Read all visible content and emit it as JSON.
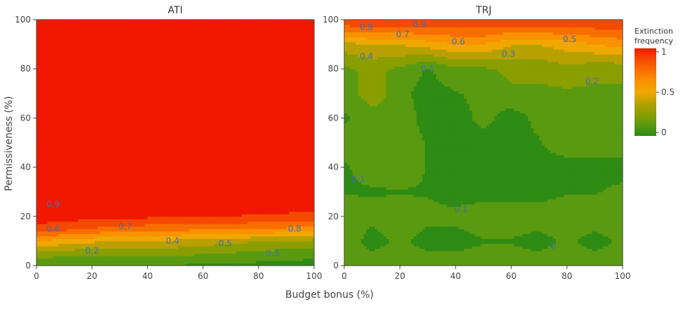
{
  "chart_data": {
    "type": "heatmap",
    "xlabel": "Budget bonus (%)",
    "ylabel": "Permissiveness (%)",
    "xlim": [
      0,
      100
    ],
    "ylim": [
      0,
      100
    ],
    "xticks": [
      "0",
      "20",
      "40",
      "60",
      "80",
      "100"
    ],
    "yticks": [
      "0",
      "20",
      "40",
      "60",
      "80",
      "100"
    ],
    "colorbar": {
      "title_line1": "Extinction",
      "title_line2": "frequency",
      "ticks": [
        "0",
        "0.5",
        "1"
      ],
      "tick_values": [
        0,
        0.5,
        1
      ],
      "colors": [
        "#2e8b14",
        "#5a9a10",
        "#8a9e00",
        "#b8a000",
        "#f0a800",
        "#fb9100",
        "#f86f00",
        "#f54a00",
        "#f21800"
      ]
    },
    "panels": [
      {
        "title": "ATI",
        "x": [
          0,
          25,
          50,
          75,
          100
        ],
        "y": [
          0,
          5,
          10,
          15,
          20,
          25,
          50,
          100
        ],
        "z": [
          [
            0.1,
            0.12,
            0.1,
            0.08,
            0.06
          ],
          [
            0.28,
            0.25,
            0.25,
            0.2,
            0.15
          ],
          [
            0.55,
            0.45,
            0.42,
            0.35,
            0.3
          ],
          [
            0.85,
            0.75,
            0.7,
            0.68,
            0.62
          ],
          [
            0.95,
            0.92,
            0.9,
            0.88,
            0.85
          ],
          [
            1.0,
            0.98,
            0.97,
            0.96,
            0.95
          ],
          [
            1.0,
            1.0,
            1.0,
            1.0,
            1.0
          ],
          [
            1.0,
            1.0,
            1.0,
            1.0,
            1.0
          ]
        ],
        "contour_labels": [
          {
            "text": "0.9",
            "x": 6,
            "y": 25
          },
          {
            "text": "0.6",
            "x": 6,
            "y": 15
          },
          {
            "text": "0.7",
            "x": 32,
            "y": 16
          },
          {
            "text": "0.8",
            "x": 93,
            "y": 15
          },
          {
            "text": "0.4",
            "x": 49,
            "y": 10
          },
          {
            "text": "0.5",
            "x": 68,
            "y": 9
          },
          {
            "text": "0.2",
            "x": 20,
            "y": 6
          },
          {
            "text": "0.3",
            "x": 85,
            "y": 5
          }
        ]
      },
      {
        "title": "TRJ",
        "x": [
          0,
          10,
          20,
          30,
          40,
          50,
          60,
          70,
          80,
          90,
          100
        ],
        "y": [
          0,
          10,
          20,
          30,
          40,
          50,
          60,
          70,
          80,
          90,
          100
        ],
        "z": [
          [
            0.2,
            0.2,
            0.2,
            0.2,
            0.2,
            0.2,
            0.2,
            0.2,
            0.2,
            0.2,
            0.2
          ],
          [
            0.2,
            0.05,
            0.15,
            0.05,
            0.05,
            0.1,
            0.1,
            0.05,
            0.15,
            0.05,
            0.15
          ],
          [
            0.2,
            0.15,
            0.2,
            0.15,
            0.15,
            0.2,
            0.2,
            0.2,
            0.2,
            0.2,
            0.2
          ],
          [
            0.1,
            0.1,
            0.1,
            0.1,
            0.05,
            0.05,
            0.05,
            0.05,
            0.1,
            0.1,
            0.15
          ],
          [
            0.1,
            0.15,
            0.2,
            0.1,
            0.1,
            0.05,
            0.05,
            0.05,
            0.05,
            0.05,
            0.05
          ],
          [
            0.15,
            0.2,
            0.2,
            0.1,
            0.05,
            0.05,
            0.05,
            0.1,
            0.2,
            0.2,
            0.2
          ],
          [
            0.1,
            0.15,
            0.2,
            0.05,
            0.05,
            0.15,
            0.05,
            0.15,
            0.2,
            0.2,
            0.2
          ],
          [
            0.15,
            0.3,
            0.15,
            0.05,
            0.1,
            0.15,
            0.2,
            0.2,
            0.2,
            0.2,
            0.2
          ],
          [
            0.2,
            0.25,
            0.2,
            0.1,
            0.2,
            0.2,
            0.25,
            0.25,
            0.3,
            0.25,
            0.25
          ],
          [
            0.4,
            0.45,
            0.45,
            0.5,
            0.55,
            0.55,
            0.45,
            0.45,
            0.5,
            0.55,
            0.6
          ],
          [
            0.9,
            0.9,
            0.9,
            0.9,
            0.9,
            0.9,
            0.9,
            0.9,
            0.9,
            0.9,
            0.9
          ]
        ],
        "contour_labels": [
          {
            "text": "0.8",
            "x": 8,
            "y": 97
          },
          {
            "text": "0.7",
            "x": 21,
            "y": 94
          },
          {
            "text": "0.9",
            "x": 27,
            "y": 98
          },
          {
            "text": "0.6",
            "x": 41,
            "y": 91
          },
          {
            "text": "0.5",
            "x": 81,
            "y": 92
          },
          {
            "text": "0.4",
            "x": 8,
            "y": 85
          },
          {
            "text": "0.3",
            "x": 59,
            "y": 86
          },
          {
            "text": "0.1",
            "x": 30,
            "y": 80
          },
          {
            "text": "0.2",
            "x": 89,
            "y": 75
          },
          {
            "text": "0.1",
            "x": 5,
            "y": 35
          },
          {
            "text": "0.1",
            "x": 42,
            "y": 23
          },
          {
            "text": "0",
            "x": 75,
            "y": 8
          }
        ]
      }
    ]
  }
}
